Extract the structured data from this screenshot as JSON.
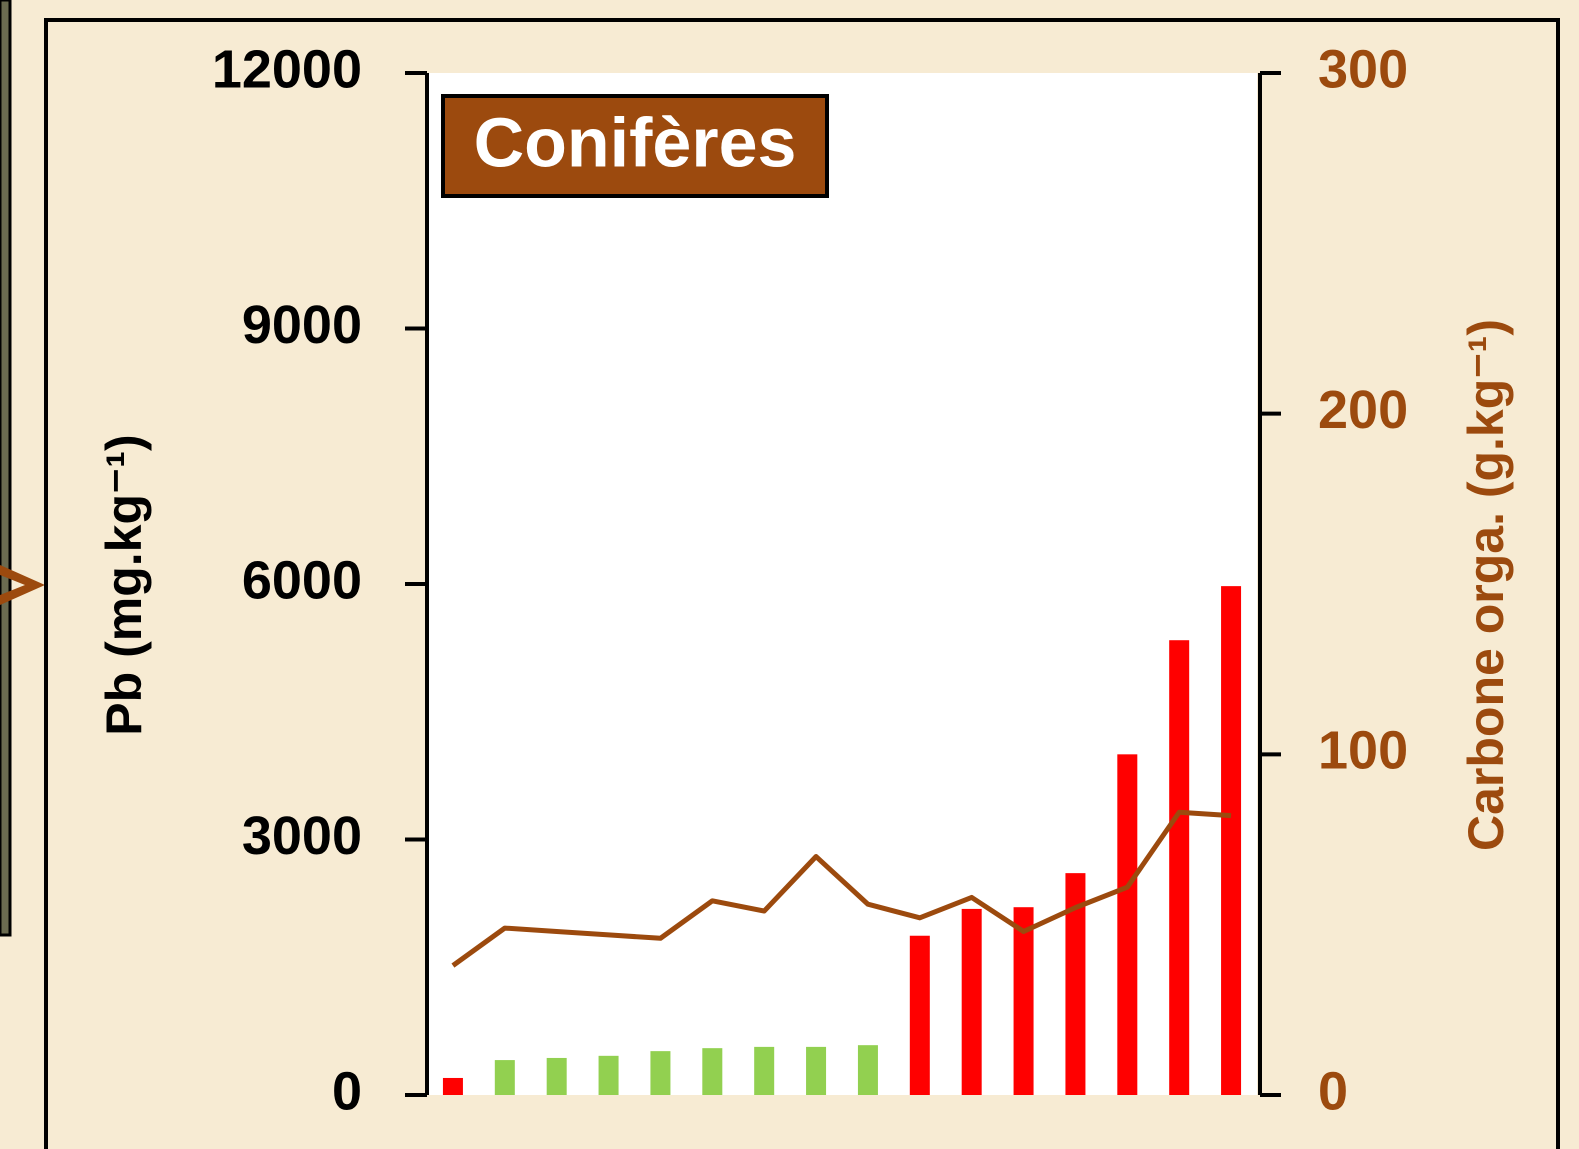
{
  "chart_data": {
    "type": "bar",
    "annotation": "Conifères",
    "y_label": "Pb (mg.kg⁻¹)",
    "y2_label": "Carbone orga. (g.kg⁻¹)",
    "categories": [
      null,
      null,
      null,
      null,
      null,
      null,
      null,
      null,
      null,
      null,
      null,
      null,
      null,
      null,
      null,
      null
    ],
    "series": [
      {
        "type": "bar",
        "colors": [
          "#ff0000",
          "#92d050",
          "#92d050",
          "#92d050",
          "#92d050",
          "#92d050",
          "#92d050",
          "#92d050",
          "#92d050",
          "#ff0000",
          "#ff0000",
          "#ff0000",
          "#ff0000",
          "#ff0000",
          "#ff0000",
          "#ff0000"
        ],
        "values": [
          200,
          410,
          435,
          460,
          515,
          550,
          565,
          565,
          585,
          1870,
          2185,
          2205,
          2605,
          4000,
          5340,
          5975
        ]
      },
      {
        "type": "line",
        "axis": "y2",
        "color": "#9c4a0e",
        "values": [
          38,
          49,
          48,
          47,
          46,
          57,
          54,
          70,
          56,
          52,
          58,
          48,
          55,
          61,
          83,
          82
        ]
      }
    ],
    "ylim": [
      0,
      12000
    ],
    "yticks": [
      0,
      3000,
      6000,
      9000,
      12000
    ],
    "y2lim": [
      0,
      300
    ],
    "y2ticks": [
      0,
      100,
      200,
      300
    ],
    "y_color": "#000000",
    "y2_color": "#9c4a0e"
  }
}
